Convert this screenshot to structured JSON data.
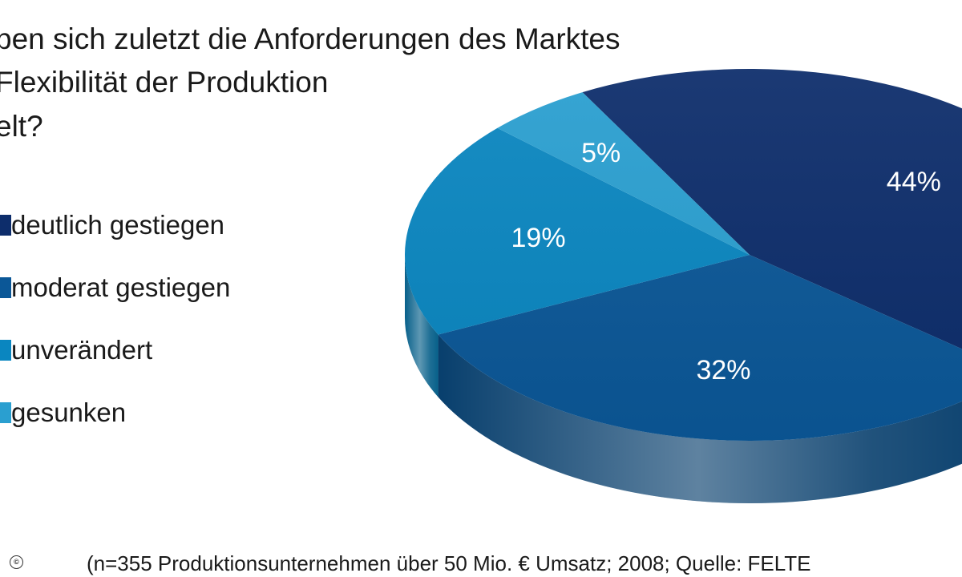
{
  "title_lines": [
    "ben sich zuletzt die Anforderungen des Marktes",
    "Flexibilität der Produktion",
    "elt?"
  ],
  "footnote": "(n=355 Produktionsunternehmen über 50 Mio. € Umsatz; 2008; Quelle: FELTE",
  "copyright": "©",
  "chart_data": {
    "type": "pie",
    "style": "3d",
    "title": "",
    "legend_position": "left",
    "slices": [
      {
        "label": "deutlich gestiegen",
        "value": 44,
        "display": "44%",
        "color": "#0d2d6b"
      },
      {
        "label": "moderat gestiegen",
        "value": 32,
        "display": "32%",
        "color": "#0b5797"
      },
      {
        "label": "unverändert",
        "value": 19,
        "display": "19%",
        "color": "#0a86c0"
      },
      {
        "label": "gesunken",
        "value": 5,
        "display": "5%",
        "color": "#2a9fd0"
      }
    ]
  }
}
